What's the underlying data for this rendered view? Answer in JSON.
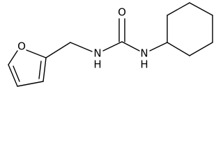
{
  "atoms": [
    {
      "symbol": "O"
    },
    {
      "symbol": "O"
    },
    {
      "symbol": "N",
      "hydrogen": "H"
    },
    {
      "symbol": "N",
      "hydrogen": "H"
    }
  ]
}
